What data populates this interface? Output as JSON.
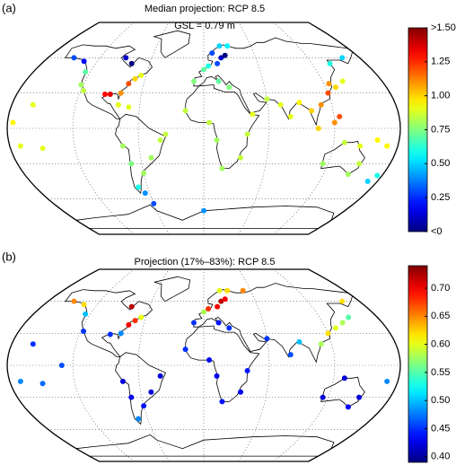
{
  "chart_data": [
    {
      "type": "map",
      "panel_label": "(a)",
      "title": "Median projection: RCP 8.5",
      "subtitle": "GSL = 0.79 m",
      "colorbar": {
        "lim": [
          0,
          1.5
        ],
        "ticks": [
          {
            "value": 1.5,
            "label": ">1.50"
          },
          1.25,
          {
            "value": 1,
            "label": "1.00"
          },
          0.75,
          {
            "value": 0.5,
            "label": "0.50"
          },
          0.25,
          {
            "value": 0,
            "label": "<0"
          }
        ]
      },
      "points": {
        "lon": [
          -150,
          -135,
          -125,
          -122,
          -117,
          -75,
          -80,
          -90,
          -95,
          -70,
          -65,
          -80,
          -70,
          -80,
          -90,
          -50,
          -40,
          -35,
          -70,
          -75,
          -60,
          -70,
          -65,
          -10,
          0,
          5,
          15,
          20,
          25,
          10,
          20,
          30,
          15,
          25,
          -17,
          5,
          12,
          18,
          35,
          40,
          45,
          60,
          72,
          80,
          90,
          100,
          110,
          120,
          125,
          130,
          140,
          140,
          160,
          105,
          120,
          125,
          115,
          130,
          145,
          150,
          145,
          175,
          170,
          160,
          170,
          -160,
          -150,
          -170,
          -175,
          -60,
          0
        ],
        "lat": [
          60,
          57,
          48,
          37,
          32,
          38,
          30,
          29,
          29,
          42,
          45,
          20,
          18,
          55,
          60,
          -25,
          -10,
          -5,
          -30,
          -15,
          -38,
          -50,
          -55,
          40,
          50,
          53,
          55,
          60,
          62,
          64,
          70,
          70,
          40,
          35,
          15,
          5,
          -10,
          -34,
          -25,
          -5,
          12,
          25,
          20,
          10,
          22,
          15,
          20,
          30,
          38,
          35,
          40,
          55,
          60,
          0,
          5,
          10,
          -30,
          -12,
          -15,
          -30,
          -39,
          -40,
          -45,
          -10,
          -15,
          20,
          -17,
          -15,
          5,
          -64,
          -70
        ],
        "values": [
          0.3,
          0.2,
          0.7,
          0.8,
          0.85,
          1.2,
          1.1,
          1.35,
          1.3,
          1.0,
          0.9,
          0.9,
          0.9,
          0.0,
          0.1,
          0.8,
          0.85,
          0.85,
          0.75,
          0.8,
          0.8,
          0.6,
          0.4,
          0.75,
          0.7,
          0.6,
          0.3,
          0.1,
          0.0,
          0.3,
          0.5,
          0.55,
          0.7,
          0.75,
          0.85,
          0.85,
          0.8,
          0.8,
          0.85,
          0.85,
          0.9,
          0.85,
          0.9,
          0.9,
          0.95,
          1.0,
          1.1,
          1.2,
          1.1,
          1.0,
          0.9,
          0.6,
          0.5,
          1.0,
          1.1,
          1.2,
          0.8,
          0.85,
          0.9,
          0.85,
          0.8,
          0.6,
          0.5,
          0.95,
          0.95,
          0.9,
          0.9,
          0.9,
          0.95,
          0.3,
          0.4
        ]
      }
    },
    {
      "type": "map",
      "panel_label": "(b)",
      "title": "Projection (17%–83%): RCP 8.5",
      "colorbar": {
        "lim": [
          0.39,
          0.74
        ],
        "ticks": [
          {
            "value": 0.7,
            "label": "0.70"
          },
          0.65,
          {
            "value": 0.6,
            "label": "0.60"
          },
          0.55,
          {
            "value": 0.5,
            "label": "0.50"
          },
          0.45,
          {
            "value": 0.4,
            "label": "0.40"
          }
        ]
      },
      "points": {
        "lon": [
          -150,
          -135,
          -125,
          -117,
          -75,
          -70,
          -80,
          -90,
          -80,
          -65,
          -50,
          -40,
          -70,
          -75,
          -60,
          -70,
          -10,
          0,
          5,
          15,
          20,
          25,
          20,
          30,
          50,
          15,
          25,
          -17,
          5,
          12,
          18,
          35,
          40,
          60,
          80,
          90,
          110,
          120,
          130,
          140,
          150,
          160,
          115,
          130,
          150,
          145,
          170,
          -160,
          -150,
          -170,
          -130
        ],
        "lat": [
          60,
          57,
          48,
          32,
          38,
          42,
          30,
          29,
          55,
          45,
          -25,
          -10,
          -30,
          -15,
          -38,
          -50,
          40,
          50,
          53,
          55,
          60,
          62,
          70,
          70,
          70,
          40,
          35,
          15,
          5,
          -10,
          -34,
          -25,
          -5,
          25,
          10,
          22,
          20,
          30,
          35,
          40,
          45,
          60,
          -30,
          -12,
          -30,
          -39,
          -15,
          20,
          -17,
          -15,
          0
        ],
        "values": [
          0.65,
          0.62,
          0.5,
          0.45,
          0.7,
          0.68,
          0.48,
          0.45,
          0.72,
          0.6,
          0.42,
          0.42,
          0.43,
          0.42,
          0.44,
          0.48,
          0.45,
          0.58,
          0.68,
          0.7,
          0.72,
          0.7,
          0.6,
          0.62,
          0.65,
          0.44,
          0.45,
          0.45,
          0.43,
          0.43,
          0.44,
          0.43,
          0.44,
          0.45,
          0.46,
          0.5,
          0.58,
          0.62,
          0.6,
          0.58,
          0.55,
          0.62,
          0.42,
          0.42,
          0.42,
          0.43,
          0.48,
          0.45,
          0.47,
          0.48,
          0.46
        ]
      }
    }
  ]
}
